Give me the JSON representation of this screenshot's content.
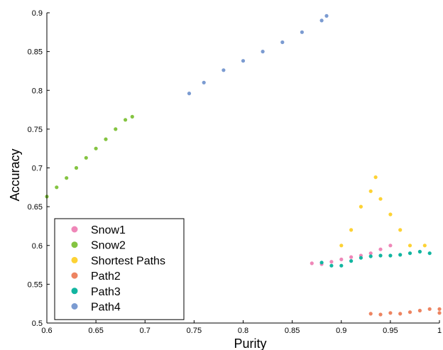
{
  "chart_data": {
    "type": "scatter",
    "title": "",
    "xlabel": "Purity",
    "ylabel": "Accuracy",
    "xlim": [
      0.6,
      1.0
    ],
    "ylim": [
      0.5,
      0.9
    ],
    "x_ticks": [
      "0.6",
      "0.65",
      "0.7",
      "0.75",
      "0.8",
      "0.85",
      "0.9",
      "0.95",
      "1"
    ],
    "y_ticks": [
      "0.5",
      "0.55",
      "0.6",
      "0.65",
      "0.7",
      "0.75",
      "0.8",
      "0.85",
      "0.9"
    ],
    "grid": false,
    "legend_position": "bottom-left",
    "series": [
      {
        "name": "Snow1",
        "color": "#ef87b8",
        "points": [
          [
            0.87,
            0.577
          ],
          [
            0.88,
            0.576
          ],
          [
            0.89,
            0.579
          ],
          [
            0.9,
            0.582
          ],
          [
            0.91,
            0.585
          ],
          [
            0.92,
            0.587
          ],
          [
            0.93,
            0.59
          ],
          [
            0.94,
            0.595
          ],
          [
            0.95,
            0.6
          ]
        ]
      },
      {
        "name": "Snow2",
        "color": "#84c441",
        "points": [
          [
            0.6,
            0.663
          ],
          [
            0.61,
            0.675
          ],
          [
            0.62,
            0.687
          ],
          [
            0.63,
            0.7
          ],
          [
            0.64,
            0.713
          ],
          [
            0.65,
            0.725
          ],
          [
            0.66,
            0.737
          ],
          [
            0.67,
            0.75
          ],
          [
            0.68,
            0.762
          ],
          [
            0.687,
            0.766
          ]
        ]
      },
      {
        "name": "Shortest Paths",
        "color": "#fdd234",
        "points": [
          [
            0.9,
            0.6
          ],
          [
            0.91,
            0.62
          ],
          [
            0.92,
            0.65
          ],
          [
            0.93,
            0.67
          ],
          [
            0.935,
            0.688
          ],
          [
            0.94,
            0.66
          ],
          [
            0.95,
            0.64
          ],
          [
            0.96,
            0.62
          ],
          [
            0.97,
            0.6
          ],
          [
            0.985,
            0.6
          ]
        ]
      },
      {
        "name": "Path2",
        "color": "#ed8461",
        "points": [
          [
            0.93,
            0.512
          ],
          [
            0.94,
            0.511
          ],
          [
            0.95,
            0.513
          ],
          [
            0.96,
            0.512
          ],
          [
            0.97,
            0.514
          ],
          [
            0.98,
            0.516
          ],
          [
            0.99,
            0.518
          ],
          [
            1.0,
            0.513
          ],
          [
            1.0,
            0.518
          ]
        ]
      },
      {
        "name": "Path3",
        "color": "#12b5a0",
        "points": [
          [
            0.88,
            0.578
          ],
          [
            0.89,
            0.574
          ],
          [
            0.9,
            0.574
          ],
          [
            0.91,
            0.58
          ],
          [
            0.92,
            0.584
          ],
          [
            0.93,
            0.586
          ],
          [
            0.94,
            0.587
          ],
          [
            0.95,
            0.587
          ],
          [
            0.96,
            0.588
          ],
          [
            0.97,
            0.59
          ],
          [
            0.98,
            0.592
          ],
          [
            0.99,
            0.59
          ]
        ]
      },
      {
        "name": "Path4",
        "color": "#7b9bd1",
        "points": [
          [
            0.745,
            0.796
          ],
          [
            0.76,
            0.81
          ],
          [
            0.78,
            0.826
          ],
          [
            0.8,
            0.838
          ],
          [
            0.82,
            0.85
          ],
          [
            0.84,
            0.862
          ],
          [
            0.86,
            0.875
          ],
          [
            0.88,
            0.89
          ],
          [
            0.885,
            0.896
          ]
        ]
      }
    ]
  }
}
